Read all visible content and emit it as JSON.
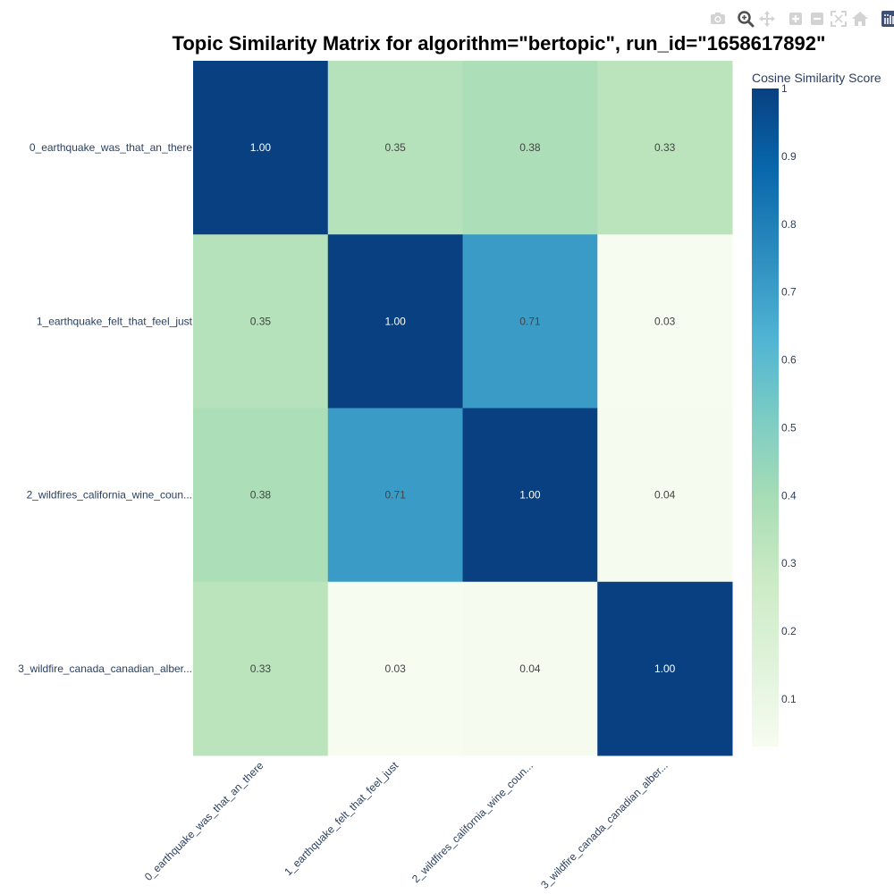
{
  "modebar": {
    "buttons": [
      {
        "name": "camera-icon",
        "title": "Download plot as a png"
      },
      {
        "name": "zoom-icon",
        "title": "Zoom"
      },
      {
        "name": "pan-icon",
        "title": "Pan"
      },
      {
        "name": "zoom-in-icon",
        "title": "Zoom in"
      },
      {
        "name": "zoom-out-icon",
        "title": "Zoom out"
      },
      {
        "name": "autoscale-icon",
        "title": "Autoscale"
      },
      {
        "name": "home-icon",
        "title": "Reset axes"
      },
      {
        "name": "plotly-logo-icon",
        "title": "Produced with Plotly"
      }
    ]
  },
  "chart_data": {
    "type": "heatmap",
    "title": "Topic Similarity Matrix for algorithm=\"bertopic\", run_id=\"1658617892\"",
    "x_labels": [
      "0_earthquake_was_that_an_there",
      "1_earthquake_felt_that_feel_just",
      "2_wildfires_california_wine_coun...",
      "3_wildfire_canada_canadian_alber..."
    ],
    "y_labels": [
      "0_earthquake_was_that_an_there",
      "1_earthquake_felt_that_feel_just",
      "2_wildfires_california_wine_coun...",
      "3_wildfire_canada_canadian_alber..."
    ],
    "z": [
      [
        1.0,
        0.35,
        0.38,
        0.33
      ],
      [
        0.35,
        1.0,
        0.71,
        0.03
      ],
      [
        0.38,
        0.71,
        1.0,
        0.04
      ],
      [
        0.33,
        0.03,
        0.04,
        1.0
      ]
    ],
    "cell_text": [
      [
        "1.00",
        "0.35",
        "0.38",
        "0.33"
      ],
      [
        "0.35",
        "1.00",
        "0.71",
        "0.03"
      ],
      [
        "0.38",
        "0.71",
        "1.00",
        "0.04"
      ],
      [
        "0.33",
        "0.03",
        "0.04",
        "1.00"
      ]
    ],
    "zmin": 0.03,
    "zmax": 1.0,
    "colorscale": "GnBu",
    "colorbar": {
      "title": "Cosine Similarity Score",
      "tickvals": [
        0.1,
        0.2,
        0.3,
        0.4,
        0.5,
        0.6,
        0.7,
        0.8,
        0.9,
        1
      ],
      "ticktext": [
        "0.1",
        "0.2",
        "0.3",
        "0.4",
        "0.5",
        "0.6",
        "0.7",
        "0.8",
        "0.9",
        "1"
      ]
    },
    "colors": {
      "gnbu_stops": [
        "#f7fcf0",
        "#e0f3db",
        "#ccebc5",
        "#a8ddb5",
        "#7bccc4",
        "#4eb3d3",
        "#2b8cbe",
        "#0868ac",
        "#084081"
      ],
      "tick_text": "#2a3f5f",
      "dark_label": "#444444",
      "light_label": "#ffffff"
    }
  }
}
